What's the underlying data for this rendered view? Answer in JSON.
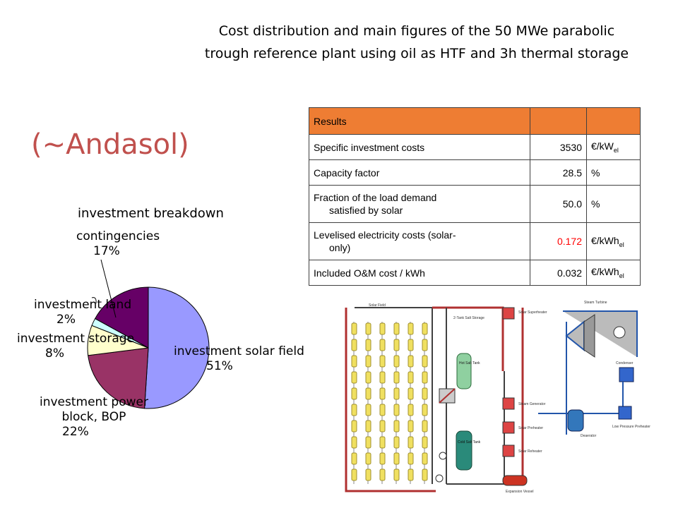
{
  "title_lines": [
    "Cost distribution and main figures of the 50 MWe parabolic",
    "trough reference plant using oil as HTF and 3h thermal storage"
  ],
  "subject": "(~Andasol)",
  "chart_data": {
    "type": "pie",
    "title": "investment breakdown",
    "slices": [
      {
        "label": "investment solar field",
        "value": 51,
        "text": "51%",
        "color": "#9999ff"
      },
      {
        "label": "investment power block,  BOP",
        "value": 22,
        "text": "22%",
        "color": "#993366"
      },
      {
        "label": "investment storage",
        "value": 8,
        "text": "8%",
        "color": "#ffffcc"
      },
      {
        "label": "investment land",
        "value": 2,
        "text": "2%",
        "color": "#ccffff"
      },
      {
        "label": "contingencies",
        "value": 17,
        "text": "17%",
        "color": "#660066"
      }
    ]
  },
  "table": {
    "header": "Results",
    "rows": [
      {
        "label": "Specific investment costs",
        "value": "3530",
        "unit": "€/kW",
        "unit_sub": "el"
      },
      {
        "label": "Capacity factor",
        "value": "28.5",
        "unit": "%",
        "unit_sub": ""
      },
      {
        "label_line1": "Fraction of the load demand",
        "label_line2": "satisfied by solar",
        "value": "50.0",
        "unit": "%",
        "unit_sub": ""
      },
      {
        "label_line1": "Levelised electricity costs (solar-",
        "label_line2": "only)",
        "value": "0.172",
        "unit": "€/kWh",
        "unit_sub": "el",
        "value_color": "#ff0000"
      },
      {
        "label": "Included O&M cost / kWh",
        "value": "0.032",
        "unit": "€/kWh",
        "unit_sub": "el"
      }
    ]
  },
  "diagram": {
    "labels": [
      "Solar Field",
      "2-Tank Salt Storage",
      "Hot Salt Tank",
      "Cold Salt Tank",
      "Solar Superheater",
      "Steam Generator",
      "Solar Preheater",
      "Solar Reheater",
      "Expansion Vessel",
      "Steam Turbine",
      "Condenser",
      "Deaerator",
      "Low Pressure Preheater"
    ]
  }
}
